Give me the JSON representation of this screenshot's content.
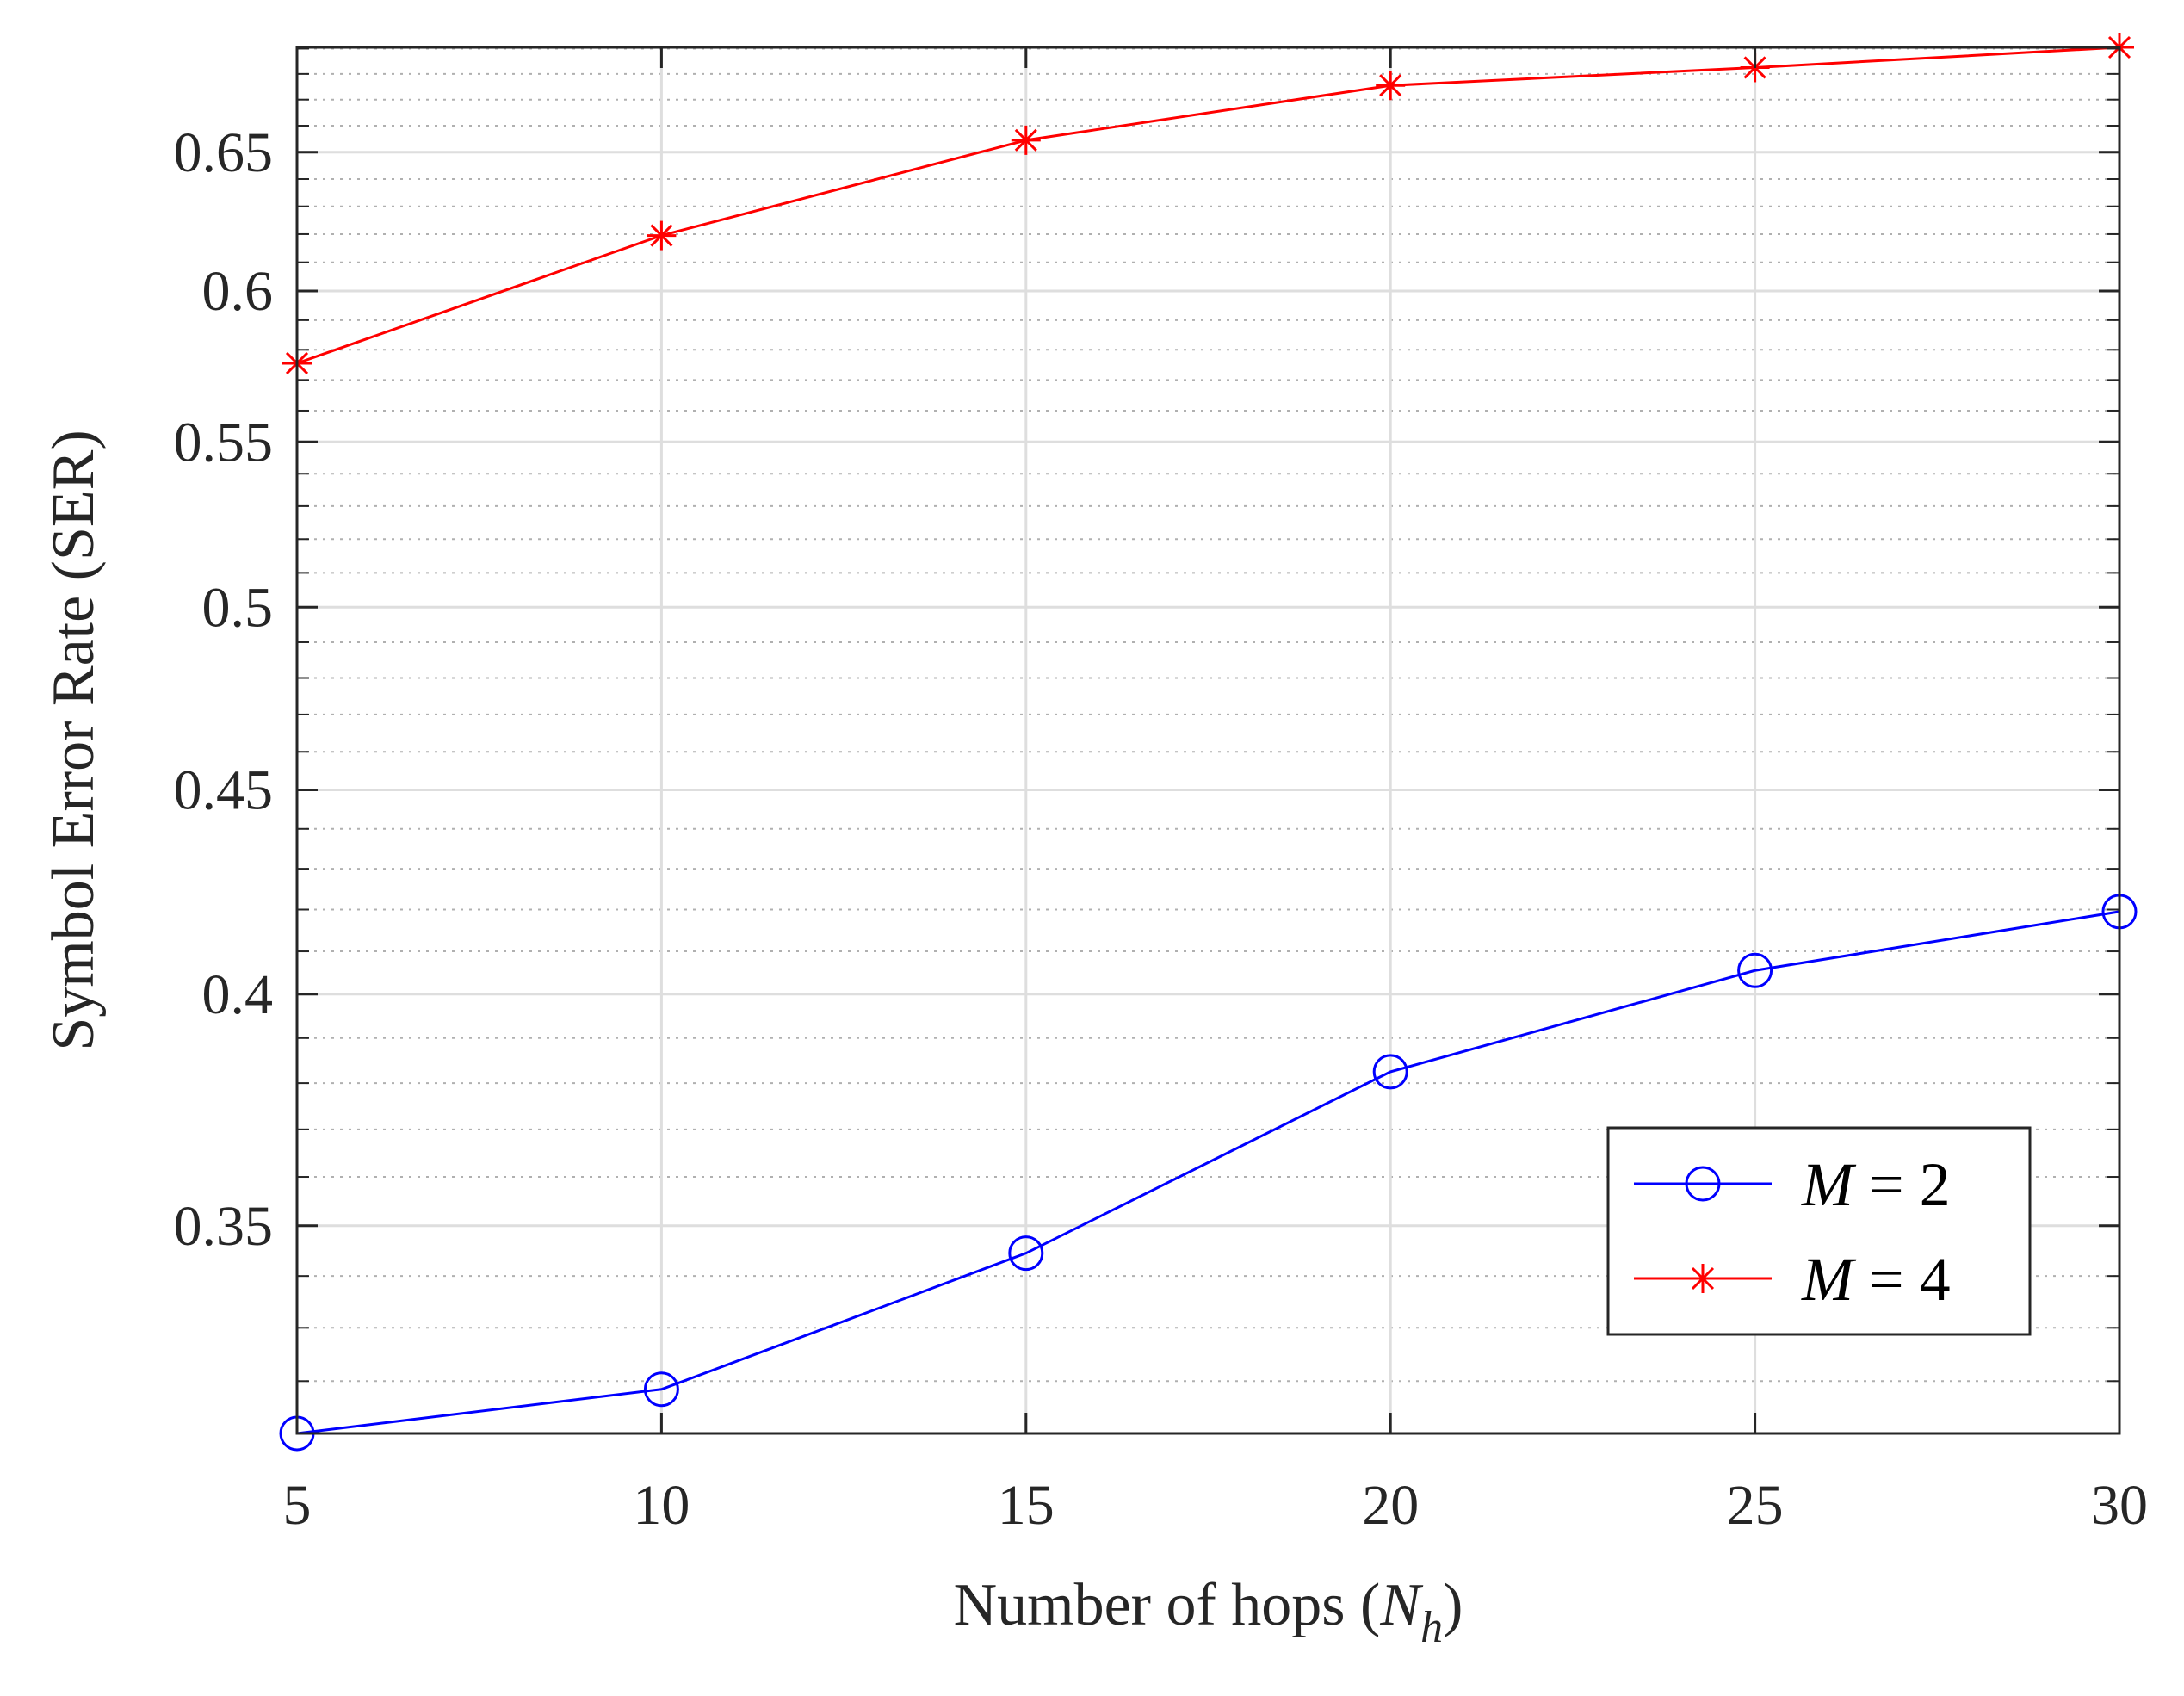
{
  "chart_data": {
    "type": "line",
    "title": "",
    "xlabel": "Number of hops (",
    "xlabel_var": "N",
    "xlabel_sub": "h",
    "xlabel_close": ")",
    "ylabel": "Symbol Error Rate (SER)",
    "x": [
      5,
      10,
      15,
      20,
      25,
      30
    ],
    "xlim": [
      5,
      30
    ],
    "ylim": [
      0.3105,
      0.6905
    ],
    "y_scale": "log",
    "xticks": [
      5,
      10,
      15,
      20,
      25,
      30
    ],
    "xtick_labels": [
      "5",
      "10",
      "15",
      "20",
      "25",
      "30"
    ],
    "yticks": [
      0.35,
      0.4,
      0.45,
      0.5,
      0.55,
      0.6,
      0.65
    ],
    "ytick_labels": [
      "0.35",
      "0.4",
      "0.45",
      "0.5",
      "0.55",
      "0.6",
      "0.65"
    ],
    "grid": true,
    "minor_grid": true,
    "legend_position": "bottom-right",
    "series": [
      {
        "name_var": "M",
        "name_rest": " = 2",
        "color": "#0000ff",
        "marker": "circle",
        "values": [
          0.3105,
          0.3185,
          0.3445,
          0.3825,
          0.4055,
          0.4195
        ]
      },
      {
        "name_var": "M",
        "name_rest": " = 4",
        "color": "#ff0000",
        "marker": "asterisk",
        "values": [
          0.5755,
          0.6195,
          0.6545,
          0.6755,
          0.6825,
          0.6905
        ]
      }
    ]
  }
}
